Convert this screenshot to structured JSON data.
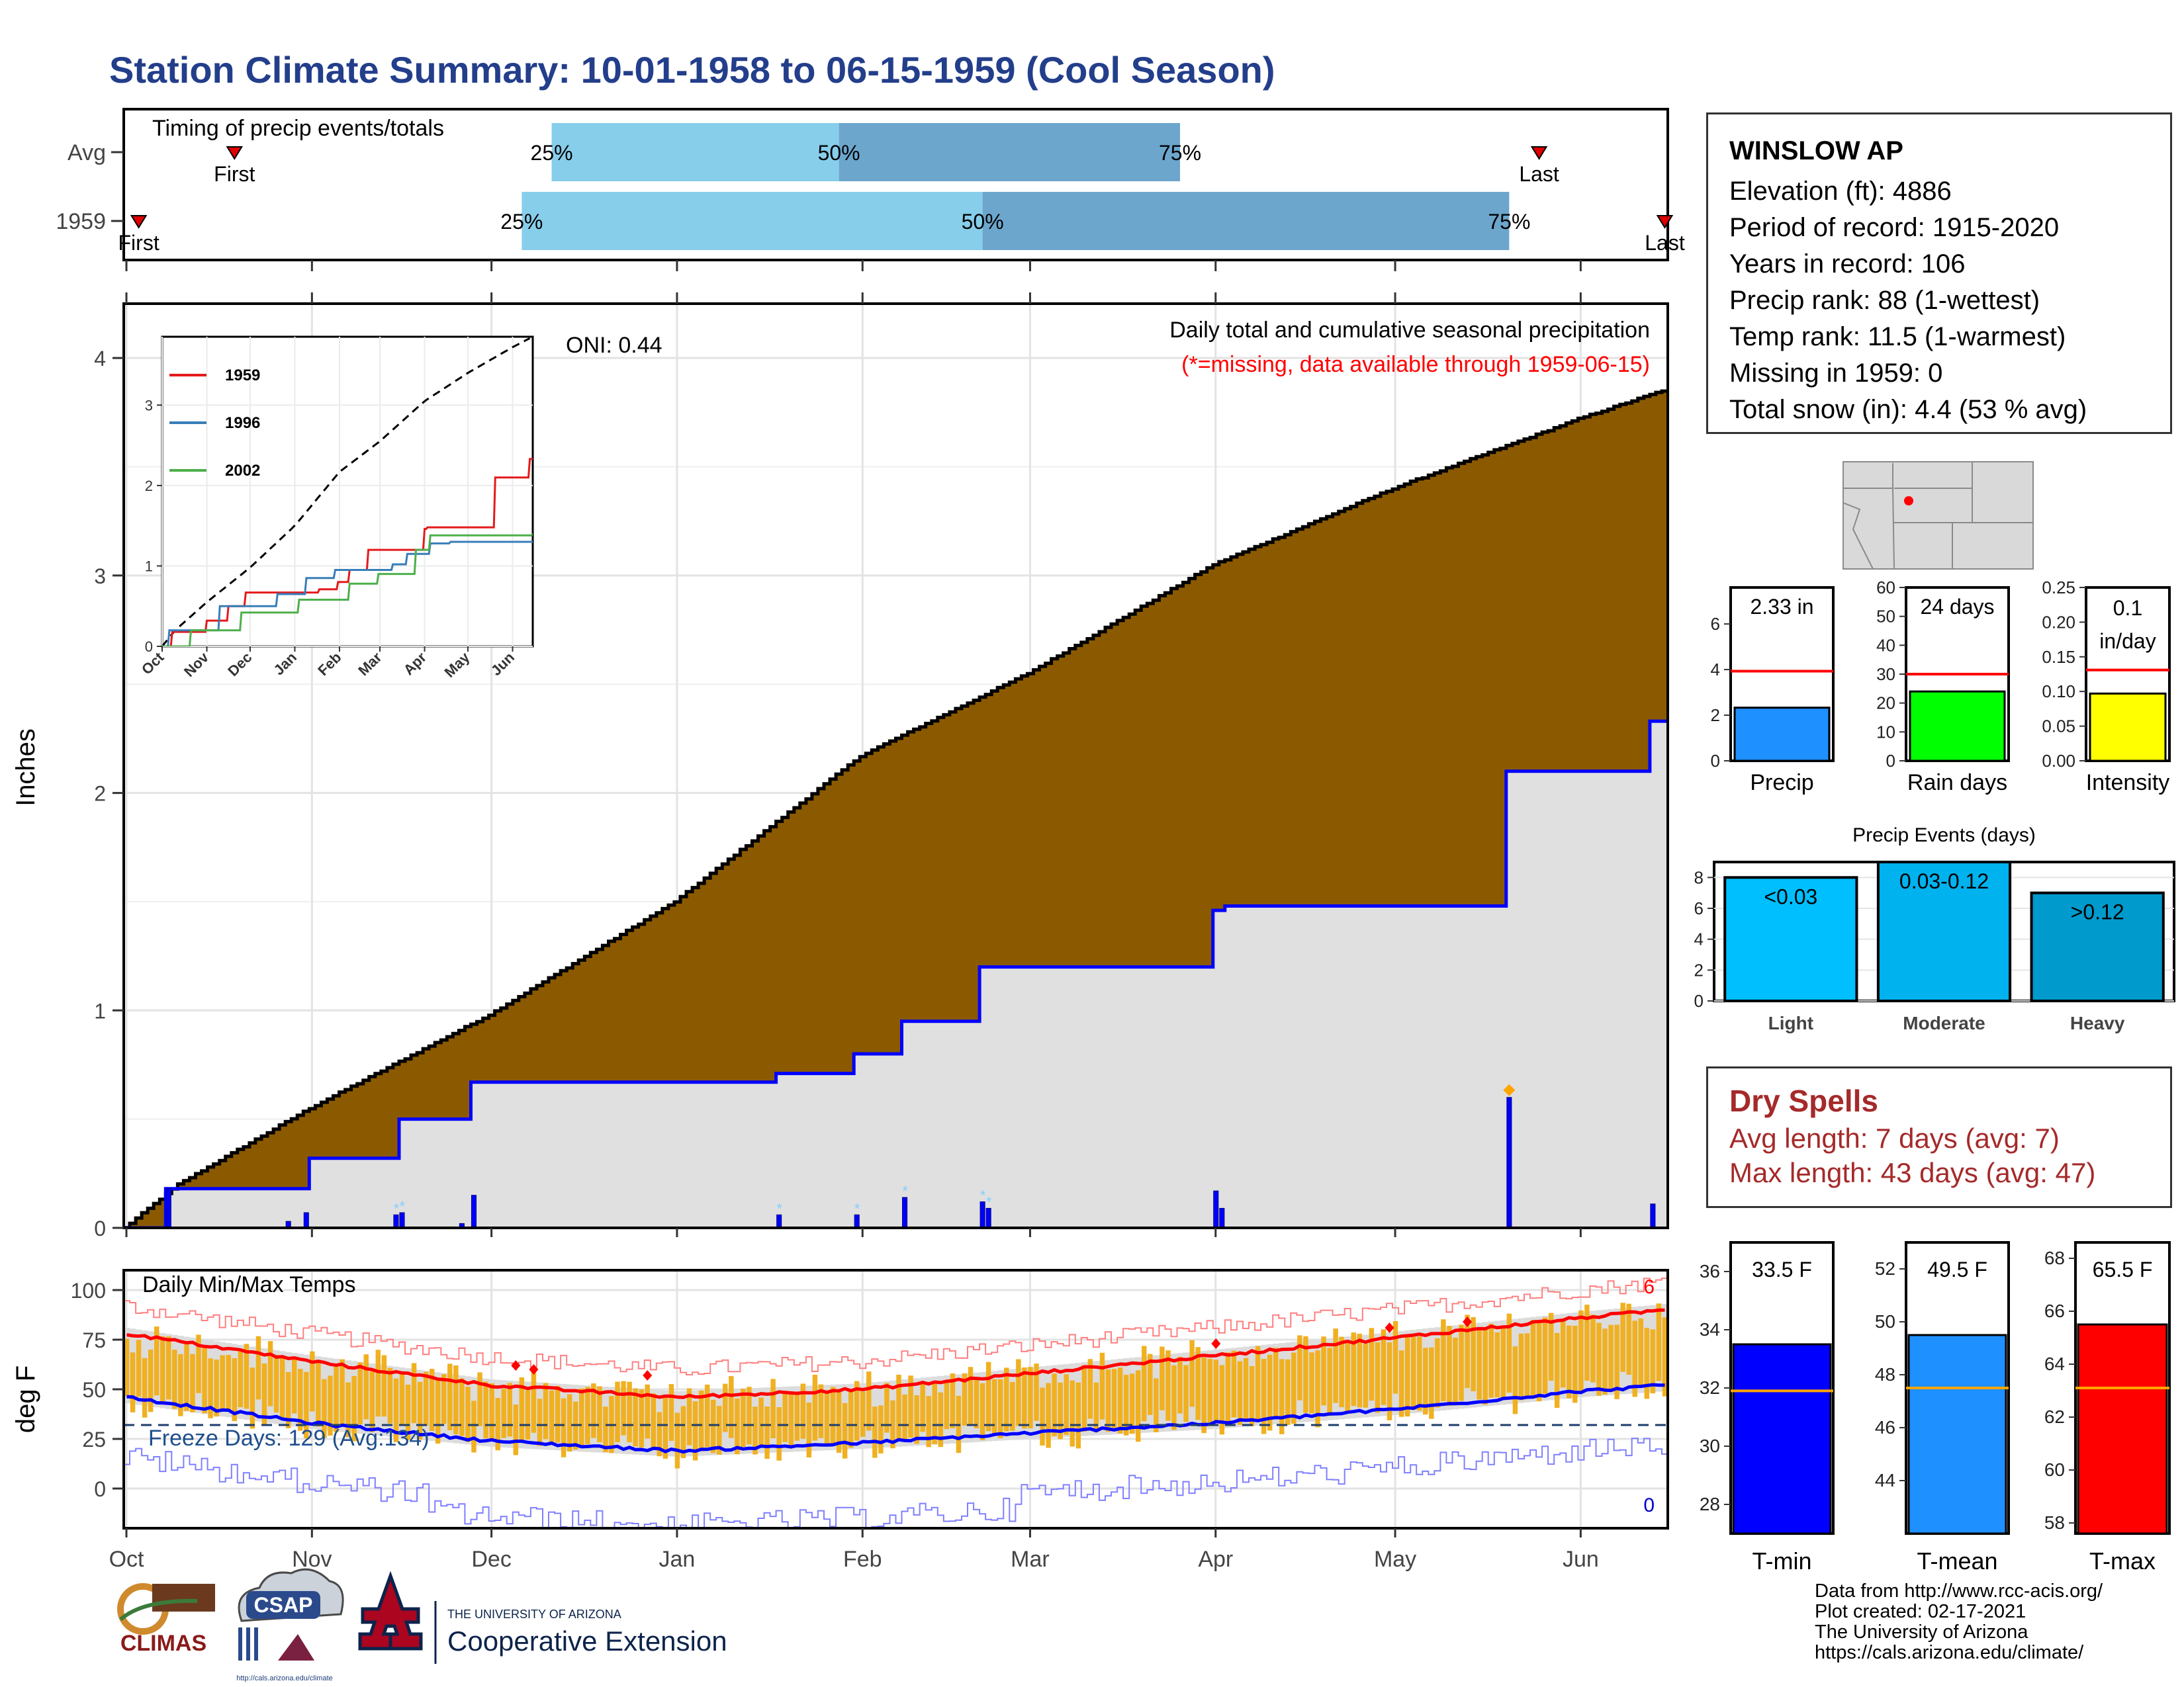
{
  "title": "Station Climate Summary: 10-01-1958 to 06-15-1959 (Cool Season)",
  "timing": {
    "title": "Timing of precip events/totals",
    "rows": [
      {
        "label": "Avg",
        "first_label": "First",
        "last_label": "Last",
        "first_date": "1958-10-19",
        "last_date": "1959-05-25",
        "p25_date": "1958-12-11",
        "p50_date": "1959-01-28",
        "p75_date": "1959-03-26",
        "p25_label": "25%",
        "p50_label": "50%",
        "p75_label": "75%"
      },
      {
        "label": "1959",
        "first_label": "First",
        "last_label": "Last",
        "first_date": "1958-10-03",
        "last_date": "1959-06-15",
        "p25_date": "1958-12-06",
        "p50_date": "1959-02-21",
        "p75_date": "1959-05-20",
        "p25_label": "25%",
        "p50_label": "50%",
        "p75_label": "75%"
      }
    ]
  },
  "precip_panel": {
    "ylabel": "Inches",
    "ylim": [
      0,
      4.25
    ],
    "yticks": [
      "0",
      "1",
      "2",
      "3",
      "4"
    ],
    "caption": "Daily total and cumulative seasonal precipitation",
    "missing_note": "(*=missing, data available through 1959-06-15)",
    "oni": "ONI: 0.44"
  },
  "inset": {
    "ylim": [
      0,
      3.85
    ],
    "yticks": [
      "0",
      "1",
      "2",
      "3"
    ],
    "xticks": [
      "Oct",
      "Nov",
      "Dec",
      "Jan",
      "Feb",
      "Mar",
      "Apr",
      "May",
      "Jun"
    ],
    "legend": [
      {
        "name": "1959",
        "color": "#e41a1c"
      },
      {
        "name": "1996",
        "color": "#377eb8"
      },
      {
        "name": "2002",
        "color": "#4daf4a"
      }
    ]
  },
  "temp_panel": {
    "title": "Daily Min/Max Temps",
    "ylabel": "deg F",
    "ylim": [
      -20,
      110
    ],
    "yticks": [
      "0",
      "25",
      "50",
      "75",
      "100"
    ],
    "freeze_label": "Freeze Days: 129 (Avg:134)",
    "count_top": "6",
    "count_bottom": "0"
  },
  "months": [
    "Oct",
    "Nov",
    "Dec",
    "Jan",
    "Feb",
    "Mar",
    "Apr",
    "May",
    "Jun"
  ],
  "station": {
    "name": "WINSLOW AP",
    "lines": [
      "Elevation (ft): 4886",
      "Period of record: 1915-2020",
      "Years in record: 106",
      "Precip rank: 88 (1-wettest)",
      "Temp rank: 11.5 (1-warmest)",
      "Missing in 1959: 0",
      "Total snow (in): 4.4 (53 % avg)"
    ]
  },
  "mini_bars": [
    {
      "label": "Precip",
      "value_label": "2.33 in",
      "value": 2.33,
      "avg": 3.93,
      "ymax": 7.6,
      "ticks": [
        0,
        2,
        4,
        6
      ],
      "color": "#1E90FF"
    },
    {
      "label": "Rain days",
      "value_label": "24 days",
      "value": 24,
      "avg": 30,
      "ymax": 60,
      "ticks": [
        0,
        10,
        20,
        30,
        40,
        50,
        60
      ],
      "color": "#00FF00"
    },
    {
      "label": "Intensity",
      "value_label": "0.1 in/day",
      "value": 0.097,
      "avg": 0.131,
      "ymax": 0.25,
      "ticks": [
        "0.00",
        "0.05",
        "0.10",
        "0.15",
        "0.20",
        "0.25"
      ],
      "color": "#FFFF00"
    }
  ],
  "precip_events": {
    "title": "Precip Events (days)",
    "ticks": [
      0,
      2,
      4,
      6,
      8
    ],
    "ymax": 9,
    "categories": [
      {
        "label": "Light",
        "value_label": "<0.03",
        "value": 8,
        "color": "#00BFFF"
      },
      {
        "label": "Moderate",
        "value_label": "0.03-0.12",
        "value": 9,
        "color": "#00B2EE"
      },
      {
        "label": "Heavy",
        "value_label": ">0.12",
        "value": 7,
        "color": "#009ACD"
      }
    ]
  },
  "dry_spells": {
    "title": "Dry Spells",
    "avg_line": "Avg length: 7 days (avg: 7)",
    "max_line": "Max length: 43 days (avg: 47)"
  },
  "temp_bars": [
    {
      "label": "T-min",
      "value_label": "33.5 F",
      "value": 33.5,
      "avg": 31.9,
      "ylim": [
        27,
        37
      ],
      "ticks": [
        28,
        30,
        32,
        34,
        36
      ],
      "color": "#0000FF"
    },
    {
      "label": "T-mean",
      "value_label": "49.5 F",
      "value": 49.5,
      "avg": 47.5,
      "ylim": [
        42,
        53
      ],
      "ticks": [
        44,
        46,
        48,
        50,
        52
      ],
      "color": "#1E90FF"
    },
    {
      "label": "T-max",
      "value_label": "65.5 F",
      "value": 65.5,
      "avg": 63.1,
      "ylim": [
        57.6,
        68.6
      ],
      "ticks": [
        58,
        60,
        62,
        64,
        66,
        68
      ],
      "color": "#FF0000"
    }
  ],
  "logos": {
    "climas": "CLIMAS",
    "csap": "CSAP",
    "csap_url": "http://cals.arizona.edu/climate",
    "ua_small": "THE UNIVERSITY OF ARIZONA",
    "ua_big": "Cooperative Extension"
  },
  "footer": [
    "Data from http://www.rcc-acis.org/",
    "Plot created: 02-17-2021",
    "The University of Arizona",
    "https://cals.arizona.edu/climate/"
  ],
  "chart_data": [
    {
      "type": "area",
      "title": "Daily total and cumulative seasonal precipitation",
      "ylabel": "Inches",
      "ylim": [
        0,
        4.25
      ],
      "series": [
        {
          "name": "Avg",
          "x": [
            "1958-10-01",
            "1958-10-10",
            "1958-11-01",
            "1958-12-01",
            "1959-01-01",
            "1959-02-01",
            "1959-03-01",
            "1959-04-01",
            "1959-05-01",
            "1959-06-01",
            "1959-06-15"
          ],
          "values": [
            0,
            0.2,
            0.55,
            0.98,
            1.5,
            2.17,
            2.55,
            3.05,
            3.4,
            3.72,
            3.85
          ]
        },
        {
          "name": "1959",
          "x": [
            "1958-10-01",
            "1958-10-08",
            "1958-11-01",
            "1958-11-16",
            "1958-11-28",
            "1959-01-18",
            "1959-01-31",
            "1959-02-08",
            "1959-02-21",
            "1959-04-01",
            "1959-04-03",
            "1959-05-20",
            "1959-06-13",
            "1959-06-15"
          ],
          "values": [
            0,
            0.18,
            0.32,
            0.5,
            0.67,
            0.71,
            0.8,
            0.95,
            1.2,
            1.46,
            1.48,
            2.1,
            2.33,
            2.33
          ]
        }
      ],
      "daily_precip": [
        {
          "x": "1958-10-08",
          "value": 0.18
        },
        {
          "x": "1958-10-28",
          "value": 0.03
        },
        {
          "x": "1958-10-31",
          "value": 0.07
        },
        {
          "x": "1958-11-15",
          "value": 0.06
        },
        {
          "x": "1958-11-16",
          "value": 0.07
        },
        {
          "x": "1958-11-26",
          "value": 0.02
        },
        {
          "x": "1958-11-28",
          "value": 0.15
        },
        {
          "x": "1959-01-18",
          "value": 0.06
        },
        {
          "x": "1959-01-31",
          "value": 0.06
        },
        {
          "x": "1959-02-08",
          "value": 0.14
        },
        {
          "x": "1959-02-21",
          "value": 0.12
        },
        {
          "x": "1959-02-22",
          "value": 0.09
        },
        {
          "x": "1959-04-01",
          "value": 0.17
        },
        {
          "x": "1959-04-02",
          "value": 0.09
        },
        {
          "x": "1959-05-20",
          "value": 0.6
        },
        {
          "x": "1959-06-13",
          "value": 0.11
        }
      ]
    },
    {
      "type": "line",
      "title": "Daily Min/Max Temps",
      "ylabel": "deg F",
      "ylim": [
        -20,
        110
      ],
      "series": [
        {
          "name": "Avg max",
          "x": [
            "1958-10-01",
            "1958-11-01",
            "1958-12-01",
            "1959-01-01",
            "1959-02-01",
            "1959-03-01",
            "1959-04-01",
            "1959-05-01",
            "1959-06-01",
            "1959-06-15"
          ],
          "values": [
            78,
            64,
            52,
            46,
            50,
            58,
            67,
            76,
            86,
            90
          ]
        },
        {
          "name": "Avg min",
          "x": [
            "1958-10-01",
            "1958-11-01",
            "1958-12-01",
            "1959-01-01",
            "1959-02-01",
            "1959-03-01",
            "1959-04-01",
            "1959-05-01",
            "1959-06-01",
            "1959-06-15"
          ],
          "values": [
            46,
            33,
            24,
            19,
            23,
            28,
            33,
            40,
            49,
            52
          ]
        }
      ],
      "freeze_threshold": 32
    }
  ]
}
